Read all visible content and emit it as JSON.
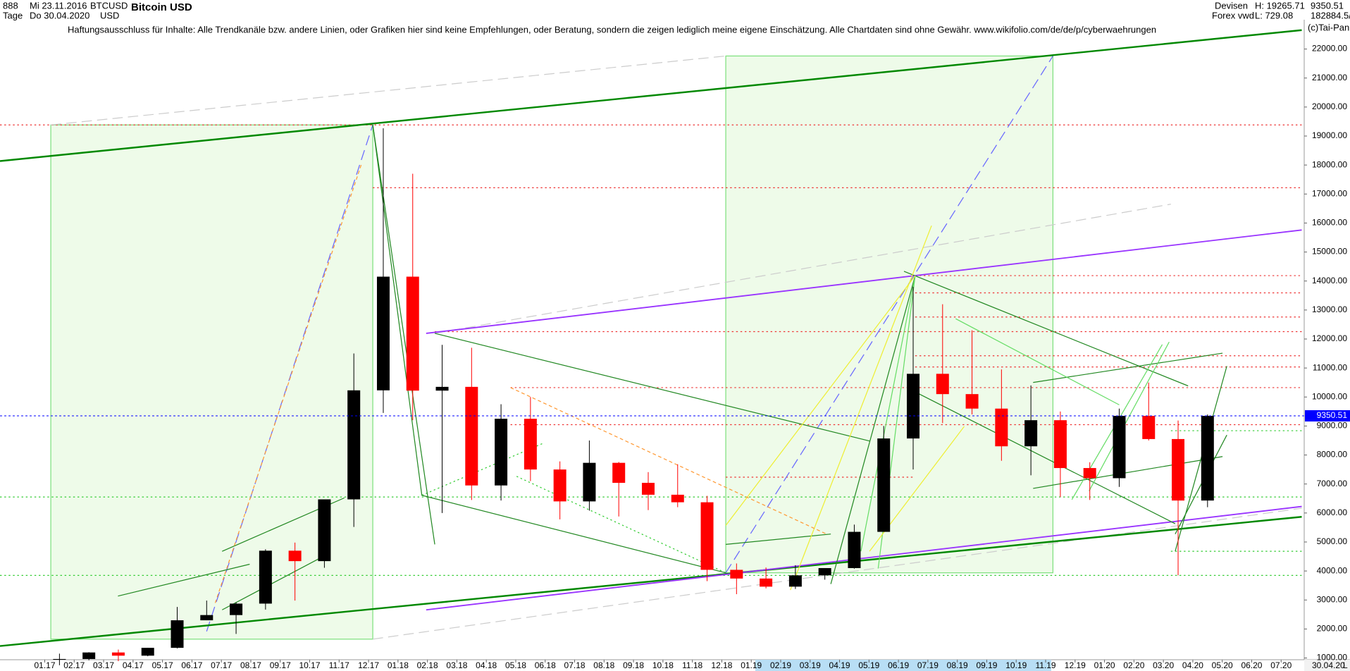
{
  "header": {
    "symbol_no": "888",
    "date_from": "Mi 23.11.2016",
    "date_to": "Do 30.04.2020",
    "period": "Tage",
    "ticker": "BTCUSD",
    "currency": "USD",
    "title": "Bitcoin USD",
    "market": "Devisen",
    "source": "Forex vwd",
    "high": "H: 19265.71",
    "low": "L: 729.08",
    "last": "9350.51",
    "volume": "182884.5/",
    "disclaimer": "Haftungsausschluss für Inhalte: Alle Trendkanäle bzw. andere Linien, oder Grafiken hier sind keine Empfehlungen, oder Beratung, sondern die zeigen lediglich meine eigene Einschätzung. Alle Chartdaten sind ohne Gewähr.  www.wikifolio.com/de/de/p/cyberwaehrungen",
    "copyright": "(c)Tai-Pan",
    "end_date": "30.04.20",
    "scale_mode": "L"
  },
  "chart_data": {
    "type": "candlestick",
    "title": "Bitcoin USD",
    "categories": [
      "01.17",
      "02.17",
      "03.17",
      "04.17",
      "05.17",
      "06.17",
      "07.17",
      "08.17",
      "09.17",
      "10.17",
      "11.17",
      "12.17",
      "01.18",
      "02.18",
      "03.18",
      "04.18",
      "05.18",
      "06.18",
      "07.18",
      "08.18",
      "09.18",
      "10.18",
      "11.18",
      "12.18",
      "01.19",
      "02.19",
      "03.19",
      "04.19",
      "05.19",
      "06.19",
      "07.19",
      "08.19",
      "09.19",
      "10.19",
      "11.19",
      "12.19",
      "01.20",
      "02.20",
      "03.20",
      "04.20",
      "05.20",
      "06.20",
      "07.20"
    ],
    "open": [
      960,
      965,
      1190,
      1080,
      1350,
      2300,
      2480,
      2875,
      4700,
      4340,
      6470,
      10230,
      14150,
      10220,
      10350,
      6950,
      9250,
      7500,
      6400,
      7730,
      7040,
      6630,
      6370,
      4040,
      3740,
      3460,
      3850,
      4100,
      5350,
      8570,
      10800,
      10100,
      9600,
      8300,
      9200,
      7550,
      7200,
      9350,
      8550,
      6430,
      null,
      null,
      null
    ],
    "high": [
      1150,
      1200,
      1290,
      1350,
      2760,
      2980,
      2920,
      4750,
      4980,
      6450,
      11500,
      19265.71,
      17700,
      11800,
      11700,
      9750,
      10000,
      7780,
      8500,
      7760,
      7410,
      7680,
      6590,
      4260,
      4120,
      4200,
      4100,
      5600,
      9000,
      13800,
      13200,
      12300,
      10950,
      10400,
      9500,
      7750,
      9600,
      10500,
      9190,
      9400,
      null,
      null,
      null
    ],
    "low": [
      750,
      920,
      890,
      1060,
      1330,
      2300,
      1830,
      2670,
      2980,
      4110,
      5520,
      9450,
      9200,
      6000,
      6450,
      6430,
      7100,
      5780,
      6080,
      5880,
      6100,
      6200,
      3650,
      3200,
      3400,
      3380,
      3700,
      4080,
      5350,
      7500,
      9100,
      9400,
      7800,
      7300,
      6550,
      6450,
      6900,
      8500,
      3850,
      6200,
      null,
      null,
      null
    ],
    "close": [
      965,
      1190,
      1080,
      1350,
      2300,
      2480,
      2875,
      4700,
      4340,
      6470,
      10230,
      14150,
      10220,
      10350,
      6950,
      9250,
      7500,
      6400,
      7730,
      7040,
      6630,
      6370,
      4040,
      3740,
      3460,
      3850,
      4100,
      5350,
      8570,
      10800,
      10100,
      9600,
      8300,
      9200,
      7550,
      7200,
      9350,
      8550,
      6430,
      9350.51,
      null,
      null,
      null
    ],
    "up_color": "#000000",
    "down_color": "#ff0000",
    "last_price": 9350.51,
    "last_color": "#0000ff",
    "ylim": [
      940,
      22500
    ],
    "yticks": [
      {
        "value": 1000,
        "label": "1000.00"
      },
      {
        "value": 2000,
        "label": "2000.00"
      },
      {
        "value": 3000,
        "label": "3000.00"
      },
      {
        "value": 4000,
        "label": "4000.00"
      },
      {
        "value": 5000,
        "label": "5000.00"
      },
      {
        "value": 6000,
        "label": "6000.00"
      },
      {
        "value": 7000,
        "label": "7000.00"
      },
      {
        "value": 8000,
        "label": "8000.00"
      },
      {
        "value": 9000,
        "label": "9000.00"
      },
      {
        "value": 10000,
        "label": "10000.00"
      },
      {
        "value": 11000,
        "label": "11000.00"
      },
      {
        "value": 12000,
        "label": "12000.00"
      },
      {
        "value": 13000,
        "label": "13000.00"
      },
      {
        "value": 14000,
        "label": "14000.00"
      },
      {
        "value": 15000,
        "label": "15000.00"
      },
      {
        "value": 16000,
        "label": "16000.00"
      },
      {
        "value": 17000,
        "label": "17000.00"
      },
      {
        "value": 18000,
        "label": "18000.00"
      },
      {
        "value": 19000,
        "label": "19000.00"
      },
      {
        "value": 20000,
        "label": "20000.00"
      },
      {
        "value": 21000,
        "label": "21000.00"
      },
      {
        "value": 22000,
        "label": "22000.00"
      }
    ],
    "grid": false
  }
}
